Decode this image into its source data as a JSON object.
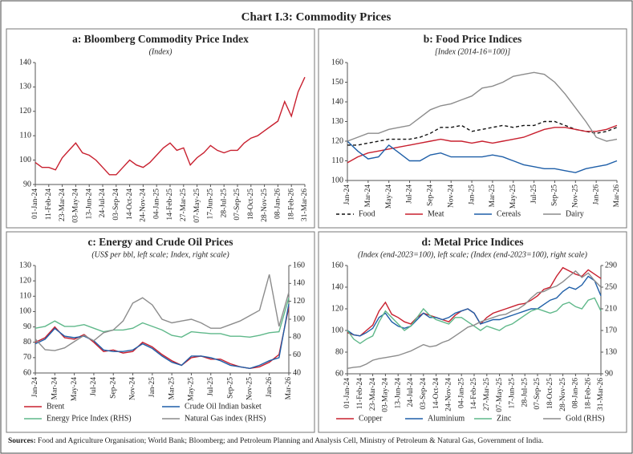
{
  "title": "Chart I.3: Commodity Prices",
  "sources_label": "Sources:",
  "sources": "Food and Agriculture Organisation; World Bank; Bloomberg; and Petroleum Planning and Analysis Cell, Ministry of Petroleum & Natural Gas, Government of India.",
  "chart_data": [
    {
      "type": "line",
      "title": "a: Bloomberg Commodity Price Index",
      "subtitle": "(Index)",
      "categories": [
        "01-Jan-24",
        null,
        "11-Feb-24",
        null,
        "23-Mar-24",
        null,
        "03-May-24",
        null,
        "13-Jun-24",
        null,
        "24-Jul-24",
        null,
        "03-Sep-24",
        null,
        "14-Oct-24",
        null,
        "24-Nov-24",
        null,
        "04-Jan-25",
        null,
        "14-Feb-25",
        null,
        "27-Mar-25",
        null,
        "07-May-25",
        null,
        "17-Jun-25",
        null,
        "28-Jul-25",
        null,
        "07-Sep-25",
        null,
        "18-Oct-25",
        null,
        "28-Nov-25",
        null,
        "08-Jan-26",
        null,
        "18-Feb-26",
        null,
        "31-Mar-26"
      ],
      "values": [
        99,
        97,
        97,
        96,
        101,
        104,
        107,
        103,
        102,
        100,
        97,
        94,
        94,
        97,
        100,
        98,
        97,
        99,
        102,
        105,
        107,
        104,
        105,
        98,
        101,
        103,
        106,
        104,
        103,
        104,
        104,
        107,
        109,
        110,
        112,
        114,
        116,
        124,
        118,
        128,
        134
      ],
      "color": "#c8202f",
      "ylim": [
        90,
        140
      ],
      "yticks": [
        90,
        100,
        110,
        120,
        130,
        140
      ]
    },
    {
      "type": "line",
      "title": "b: Food Price Indices",
      "subtitle": "[Index (2014-16=100)]",
      "categories": [
        "Jan-24",
        null,
        "Mar-24",
        null,
        "May-24",
        null,
        "Jul-24",
        null,
        "Sep-24",
        null,
        "Nov-24",
        null,
        "Jan-25",
        null,
        "Mar-25",
        null,
        "May-25",
        null,
        "Jul-25",
        null,
        "Sep-25",
        null,
        "Nov-25",
        null,
        "Jan-26",
        null,
        "Mar-26"
      ],
      "series": [
        {
          "name": "Food",
          "color": "#111111",
          "line_style": "dashed",
          "values": [
            118,
            118,
            119,
            120,
            121,
            121,
            121,
            122,
            124,
            127,
            127,
            128,
            125,
            126,
            127,
            128,
            127,
            128,
            128,
            130,
            130,
            128,
            126,
            125,
            124,
            125,
            127
          ]
        },
        {
          "name": "Meat",
          "color": "#c8202f",
          "values": [
            109,
            112,
            114,
            115,
            116,
            117,
            118,
            119,
            120,
            121,
            120,
            120,
            119,
            120,
            119,
            120,
            121,
            122,
            124,
            126,
            127,
            127,
            126,
            125,
            125,
            126,
            128
          ]
        },
        {
          "name": "Cereals",
          "color": "#1f5fa8",
          "values": [
            120,
            115,
            111,
            112,
            118,
            114,
            110,
            110,
            113,
            114,
            112,
            112,
            112,
            112,
            113,
            112,
            110,
            108,
            107,
            106,
            106,
            105,
            104,
            106,
            107,
            108,
            110
          ]
        },
        {
          "name": "Dairy",
          "color": "#8c8c8c",
          "values": [
            120,
            122,
            124,
            124,
            126,
            127,
            128,
            132,
            136,
            138,
            139,
            141,
            143,
            147,
            148,
            150,
            153,
            154,
            155,
            154,
            150,
            144,
            137,
            130,
            122,
            120,
            121
          ]
        }
      ],
      "ylim": [
        100,
        160
      ],
      "yticks": [
        100,
        110,
        120,
        130,
        140,
        150,
        160
      ],
      "legend": "bottom"
    },
    {
      "type": "line",
      "title": "c: Energy and Crude Oil Prices",
      "subtitle": "(US$ per bbl, left scale; Index, right scale)",
      "categories": [
        "Jan-24",
        null,
        "Mar-24",
        null,
        "May-24",
        null,
        "Jul-24",
        null,
        "Sep-24",
        null,
        "Nov-24",
        null,
        "Jan-25",
        null,
        "Mar-25",
        null,
        "May-25",
        null,
        "Jul-25",
        null,
        "Sep-25",
        null,
        "Nov-25",
        null,
        "Jan-26",
        null,
        "Mar-26"
      ],
      "series": [
        {
          "name": "Brent",
          "color": "#c8202f",
          "values": [
            80,
            83,
            90,
            83,
            82,
            85,
            80,
            74,
            75,
            73,
            74,
            80,
            77,
            72,
            68,
            65,
            70,
            71,
            69,
            69,
            66,
            64,
            63,
            64,
            67,
            72,
            103
          ]
        },
        {
          "name": "Crude Oil Indian basket",
          "color": "#1f5fa8",
          "values": [
            79,
            82,
            89,
            84,
            83,
            84,
            81,
            75,
            74,
            74,
            75,
            79,
            76,
            71,
            67,
            65,
            71,
            71,
            70,
            68,
            65,
            64,
            63,
            65,
            68,
            70,
            105
          ]
        },
        {
          "name": "Energy Price Index (RHS)",
          "color": "#5fb88a",
          "axis": "y2",
          "values": [
            90,
            92,
            98,
            92,
            92,
            94,
            90,
            86,
            88,
            88,
            90,
            96,
            92,
            88,
            82,
            80,
            86,
            85,
            84,
            84,
            81,
            81,
            80,
            82,
            85,
            86,
            124
          ]
        },
        {
          "name": "Natural Gas index (RHS)",
          "color": "#8c8c8c",
          "axis": "y2",
          "values": [
            78,
            66,
            65,
            68,
            75,
            82,
            76,
            85,
            88,
            98,
            118,
            124,
            116,
            100,
            96,
            98,
            100,
            96,
            90,
            90,
            94,
            98,
            104,
            110,
            150,
            92,
            130
          ]
        }
      ],
      "ylim": [
        60,
        130
      ],
      "yticks": [
        60,
        70,
        80,
        90,
        100,
        110,
        120,
        130
      ],
      "y2lim": [
        40,
        160
      ],
      "y2ticks": [
        40,
        60,
        80,
        100,
        120,
        140,
        160
      ],
      "legend": "bottom"
    },
    {
      "type": "line",
      "title": "d:  Metal Price Indices",
      "subtitle": "(Index (end-2023=100), left scale; (Index (end-2023=100), right scale)",
      "categories": [
        "01-Jan-24",
        null,
        "11-Feb-24",
        null,
        "23-Mar-24",
        null,
        "03-May-24",
        null,
        "13-Jun-24",
        null,
        "24-Jul-24",
        null,
        "03-Sep-24",
        null,
        "14-Oct-24",
        null,
        "24-Nov-24",
        null,
        "04-Jan-25",
        null,
        "14-Feb-25",
        null,
        "27-Mar-25",
        null,
        "07-May-25",
        null,
        "17-Jun-25",
        null,
        "28-Jul-25",
        null,
        "07-Sep-25",
        null,
        "18-Oct-25",
        null,
        "28-Nov-25",
        null,
        "08-Jan-26",
        null,
        "18-Feb-26",
        null,
        "31-Mar-26"
      ],
      "series": [
        {
          "name": "Copper",
          "color": "#c8202f",
          "values": [
            98,
            96,
            95,
            100,
            105,
            118,
            126,
            115,
            112,
            108,
            106,
            112,
            116,
            114,
            112,
            110,
            108,
            114,
            118,
            120,
            116,
            106,
            112,
            116,
            118,
            120,
            122,
            124,
            125,
            128,
            132,
            138,
            140,
            150,
            158,
            155,
            152,
            150,
            156,
            152,
            148
          ]
        },
        {
          "name": "Aluminium",
          "color": "#1f5fa8",
          "values": [
            100,
            96,
            95,
            98,
            102,
            112,
            116,
            108,
            104,
            102,
            104,
            110,
            116,
            112,
            112,
            110,
            112,
            116,
            118,
            120,
            116,
            106,
            108,
            110,
            110,
            112,
            114,
            116,
            118,
            120,
            120,
            124,
            128,
            130,
            136,
            140,
            138,
            142,
            150,
            146,
            132
          ]
        },
        {
          "name": "Zinc",
          "color": "#5fb88a",
          "values": [
            100,
            92,
            88,
            92,
            95,
            108,
            118,
            112,
            106,
            100,
            104,
            112,
            120,
            114,
            110,
            108,
            106,
            112,
            112,
            108,
            104,
            100,
            104,
            102,
            100,
            104,
            106,
            110,
            114,
            118,
            120,
            118,
            116,
            118,
            124,
            126,
            122,
            120,
            128,
            130,
            118
          ]
        },
        {
          "name": "Gold (RHS)",
          "color": "#8c8c8c",
          "axis": "y2",
          "values": [
            100,
            102,
            103,
            108,
            115,
            118,
            120,
            122,
            124,
            128,
            132,
            138,
            144,
            140,
            142,
            148,
            152,
            160,
            168,
            176,
            180,
            186,
            190,
            194,
            198,
            200,
            206,
            210,
            218,
            230,
            240,
            242,
            248,
            252,
            260,
            270,
            280,
            268,
            276,
            262,
            250
          ]
        }
      ],
      "ylim": [
        60,
        160
      ],
      "yticks": [
        60,
        80,
        100,
        120,
        140,
        160
      ],
      "y2lim": [
        90,
        290
      ],
      "y2ticks": [
        90,
        130,
        170,
        210,
        250,
        290
      ],
      "legend": "bottom"
    }
  ]
}
